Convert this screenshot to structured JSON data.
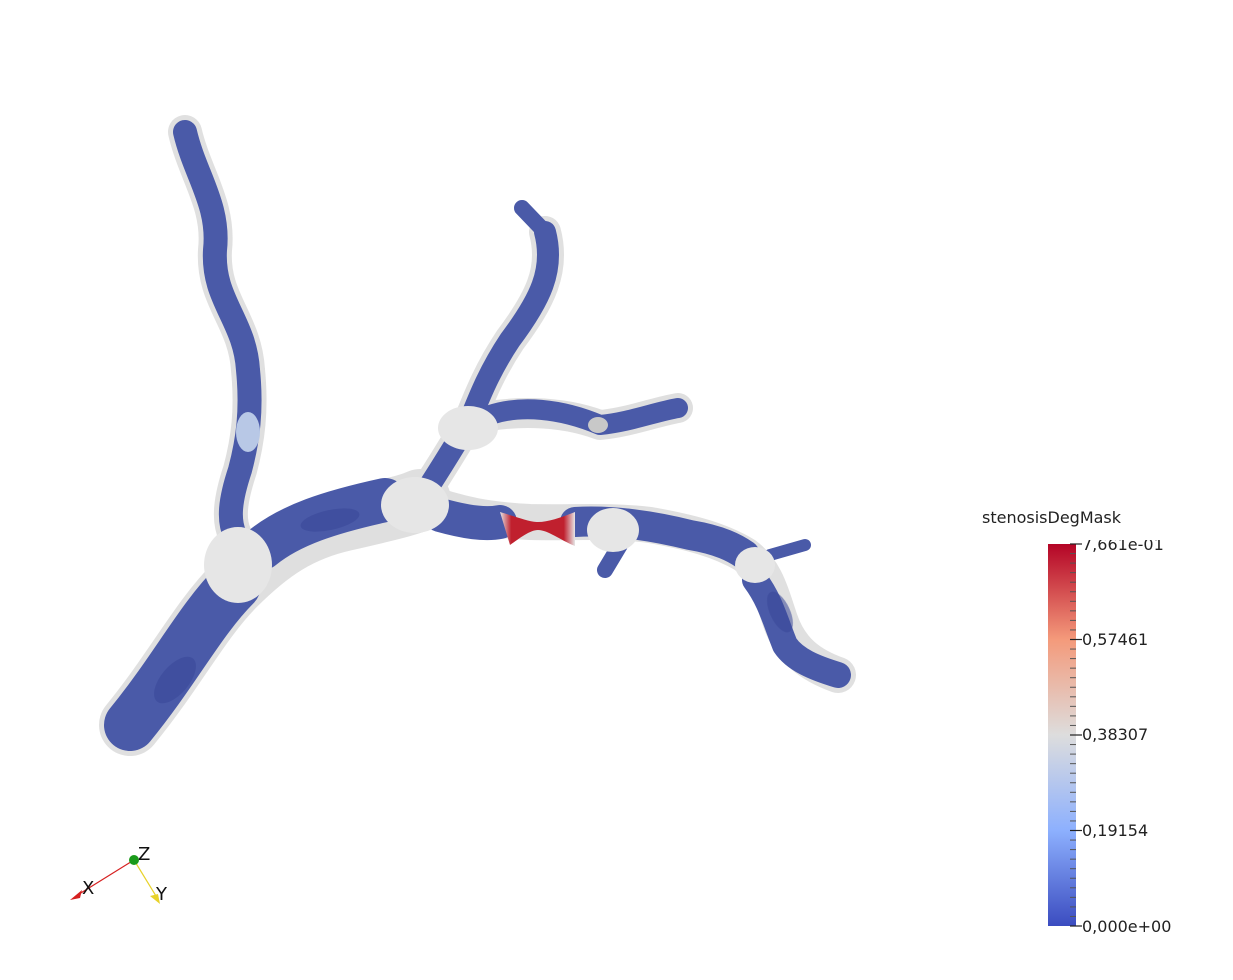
{
  "scalar_bar": {
    "title": "stenosisDegMask",
    "min_label": "0,000e+00",
    "max_label": "7,661e-01",
    "tick_labels": [
      "0,19154",
      "0,38307",
      "0,57461"
    ],
    "range": [
      0.0,
      0.7661
    ],
    "colors": {
      "low": "#3b4cc0",
      "mid": "#dddddd",
      "high": "#b40426"
    }
  },
  "orientation_axes": {
    "x_label": "X",
    "y_label": "Y",
    "z_label": "Z",
    "x_color": "#d62020",
    "y_color": "#e8d22a",
    "z_color": "#1a9a1a"
  },
  "mesh_colors": {
    "vessel_low": "#4a5aa8",
    "vessel_mid": "#e6e6e6",
    "vessel_high": "#c0202e"
  }
}
